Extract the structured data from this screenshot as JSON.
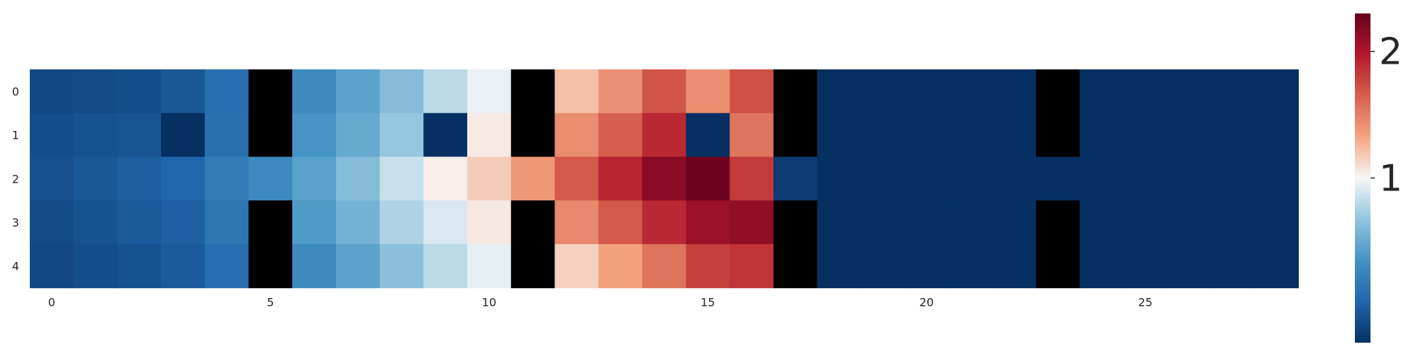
{
  "chart_data": {
    "type": "heatmap",
    "title": "",
    "xlabel": "",
    "ylabel": "",
    "colormap": "RdBu_r",
    "masked_color": "#000000",
    "rows": [
      "0",
      "1",
      "2",
      "3",
      "4"
    ],
    "x_ticks": [
      0,
      5,
      10,
      15,
      20,
      25
    ],
    "y_ticks": [
      0,
      1,
      2,
      3,
      4
    ],
    "colorbar": {
      "range": [
        0.05,
        2.3
      ],
      "center": 1.0,
      "ticks": [
        1,
        2
      ],
      "tick_labels": [
        "1",
        "2"
      ]
    },
    "values": [
      [
        0.16,
        0.17,
        0.18,
        0.22,
        0.33,
        null,
        0.48,
        0.6,
        0.72,
        0.86,
        0.97,
        null,
        1.22,
        1.42,
        1.7,
        1.43,
        1.72,
        null,
        0.05,
        0.05,
        0.05,
        0.05,
        0.05,
        null,
        0.05,
        0.05,
        0.05,
        0.05,
        0.05
      ],
      [
        0.18,
        0.2,
        0.21,
        0.05,
        0.34,
        null,
        0.53,
        0.63,
        0.77,
        0.05,
        1.05,
        null,
        1.44,
        1.66,
        1.9,
        0.05,
        1.55,
        null,
        0.05,
        0.05,
        0.05,
        0.05,
        0.05,
        null,
        0.05,
        0.05,
        0.05,
        0.05,
        0.05
      ],
      [
        0.19,
        0.22,
        0.25,
        0.29,
        0.4,
        0.47,
        0.59,
        0.72,
        0.89,
        1.04,
        1.17,
        1.39,
        1.68,
        1.92,
        2.15,
        2.28,
        1.82,
        0.1,
        0.05,
        0.05,
        0.05,
        0.05,
        0.05,
        0.05,
        0.05,
        0.05,
        0.05,
        0.05,
        0.05
      ],
      [
        0.17,
        0.2,
        0.23,
        0.26,
        0.37,
        null,
        0.56,
        0.67,
        0.83,
        0.93,
        1.06,
        null,
        1.46,
        1.68,
        1.9,
        2.08,
        2.12,
        null,
        0.05,
        0.05,
        0.05,
        0.05,
        0.05,
        null,
        0.05,
        0.05,
        0.05,
        0.05,
        0.05
      ],
      [
        0.16,
        0.18,
        0.2,
        0.24,
        0.33,
        null,
        0.48,
        0.6,
        0.74,
        0.86,
        0.96,
        null,
        1.15,
        1.35,
        1.55,
        1.8,
        1.85,
        null,
        0.05,
        0.05,
        0.05,
        0.05,
        0.05,
        null,
        0.05,
        0.05,
        0.05,
        0.05,
        0.05
      ]
    ]
  }
}
